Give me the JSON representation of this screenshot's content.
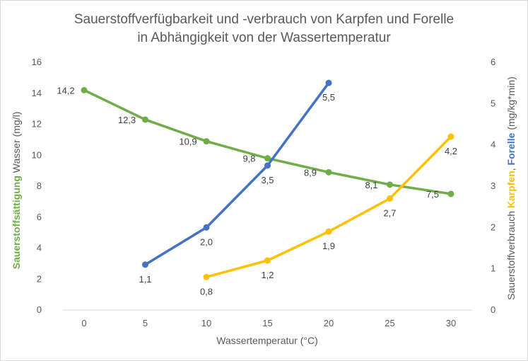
{
  "chart_data": {
    "type": "line",
    "title_line1": "Sauerstoffverfügbarkeit und -verbrauch von Karpfen und Forelle",
    "title_line2": "in Abhängigkeit von der Wassertemperatur",
    "xlabel": "Wassertemperatur (°C)",
    "ylabel_left": {
      "colored": "Sauerstoffsättigung",
      "rest": " Wasser (mg/l)",
      "color": "#70ad47"
    },
    "ylabel_right": {
      "prefix": "Sauerstoffverbrauch ",
      "part1": "Karpfen",
      "sep": ", ",
      "part2": "Forelle",
      "suffix": " (mg/kg*min)",
      "color1": "#ffc000",
      "color2": "#4472c4"
    },
    "x_ticks": [
      0,
      5,
      10,
      15,
      20,
      25,
      30
    ],
    "xlim": [
      0,
      30
    ],
    "y_left_ticks": [
      0,
      2,
      4,
      6,
      8,
      10,
      12,
      14,
      16
    ],
    "y_left_lim": [
      0,
      16
    ],
    "y_right_ticks": [
      0,
      1,
      2,
      3,
      4,
      5,
      6
    ],
    "y_right_lim": [
      0,
      6
    ],
    "grid": false,
    "series": [
      {
        "name": "Sauerstoffsättigung",
        "axis": "left",
        "color": "#70ad47",
        "x": [
          0,
          5,
          10,
          15,
          20,
          25,
          30
        ],
        "y": [
          14.2,
          12.3,
          10.9,
          9.8,
          8.9,
          8.1,
          7.5
        ],
        "labels": [
          "14,2",
          "12,3",
          "10,9",
          "9,8",
          "8,9",
          "8,1",
          "7,5"
        ]
      },
      {
        "name": "Forelle",
        "axis": "right",
        "color": "#4472c4",
        "x": [
          5,
          10,
          15,
          20
        ],
        "y": [
          1.1,
          2.0,
          3.5,
          5.5
        ],
        "labels": [
          "1,1",
          "2,0",
          "3,5",
          "5,5"
        ]
      },
      {
        "name": "Karpfen",
        "axis": "right",
        "color": "#ffc000",
        "x": [
          10,
          15,
          20,
          25,
          30
        ],
        "y": [
          0.8,
          1.2,
          1.9,
          2.7,
          4.2
        ],
        "labels": [
          "0,8",
          "1,2",
          "1,9",
          "2,7",
          "4,2"
        ]
      }
    ]
  }
}
